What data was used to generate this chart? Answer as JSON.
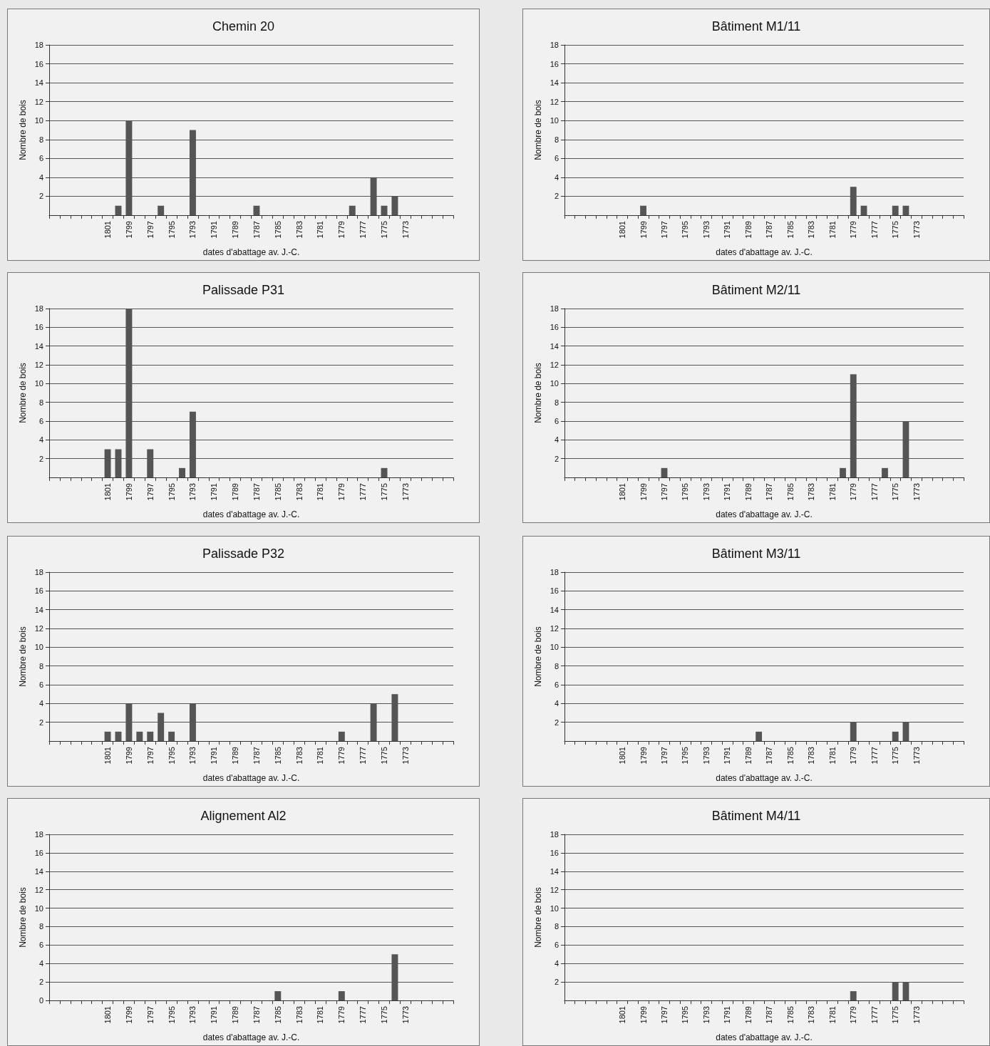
{
  "chart_data": [
    {
      "type": "bar",
      "title": "Chemin 20",
      "xlabel": "dates d'abattage av. J.-C.",
      "ylabel": "Nombre de bois",
      "categories": [
        null,
        null,
        null,
        null,
        null,
        "1801",
        null,
        "1799",
        null,
        "1797",
        null,
        "1795",
        null,
        "1793",
        null,
        "1791",
        null,
        "1789",
        null,
        "1787",
        null,
        "1785",
        null,
        "1783",
        null,
        "1781",
        null,
        "1779",
        null,
        "1777",
        null,
        "1775",
        null,
        "1773",
        null,
        null,
        null,
        null
      ],
      "values": [
        0,
        0,
        0,
        0,
        0,
        0,
        1,
        10,
        0,
        0,
        1,
        0,
        0,
        9,
        0,
        0,
        0,
        0,
        0,
        1,
        0,
        0,
        0,
        0,
        0,
        0,
        0,
        0,
        1,
        0,
        4,
        1,
        2,
        0,
        0,
        0,
        0,
        0
      ],
      "color": "#555555",
      "ylim": [
        0,
        18
      ],
      "yticks": [
        2,
        4,
        6,
        8,
        10,
        12,
        14,
        16,
        18
      ],
      "grid": true
    },
    {
      "type": "bar",
      "title": "Bâtiment M1/11",
      "xlabel": "dates d'abattage av. J.-C.",
      "ylabel": "Nombre de bois",
      "categories": [
        null,
        null,
        null,
        null,
        null,
        "1801",
        null,
        "1799",
        null,
        "1797",
        null,
        "1795",
        null,
        "1793",
        null,
        "1791",
        null,
        "1789",
        null,
        "1787",
        null,
        "1785",
        null,
        "1783",
        null,
        "1781",
        null,
        "1779",
        null,
        "1777",
        null,
        "1775",
        null,
        "1773",
        null,
        null,
        null,
        null
      ],
      "values": [
        0,
        0,
        0,
        0,
        0,
        0,
        0,
        1,
        0,
        0,
        0,
        0,
        0,
        0,
        0,
        0,
        0,
        0,
        0,
        0,
        0,
        0,
        0,
        0,
        0,
        0,
        0,
        3,
        1,
        0,
        0,
        1,
        1,
        0,
        0,
        0,
        0,
        0
      ],
      "color": "#555555",
      "ylim": [
        0,
        18
      ],
      "yticks": [
        2,
        4,
        6,
        8,
        10,
        12,
        14,
        16,
        18
      ],
      "grid": true
    },
    {
      "type": "bar",
      "title": "Palissade P31",
      "xlabel": "dates d'abattage av. J.-C.",
      "ylabel": "Nombre de bois",
      "categories": [
        null,
        null,
        null,
        null,
        null,
        "1801",
        null,
        "1799",
        null,
        "1797",
        null,
        "1795",
        null,
        "1793",
        null,
        "1791",
        null,
        "1789",
        null,
        "1787",
        null,
        "1785",
        null,
        "1783",
        null,
        "1781",
        null,
        "1779",
        null,
        "1777",
        null,
        "1775",
        null,
        "1773",
        null,
        null,
        null,
        null
      ],
      "values": [
        0,
        0,
        0,
        0,
        0,
        3,
        3,
        18,
        0,
        3,
        0,
        0,
        1,
        7,
        0,
        0,
        0,
        0,
        0,
        0,
        0,
        0,
        0,
        0,
        0,
        0,
        0,
        0,
        0,
        0,
        0,
        1,
        0,
        0,
        0,
        0,
        0,
        0
      ],
      "color": "#555555",
      "ylim": [
        0,
        18
      ],
      "yticks": [
        2,
        4,
        6,
        8,
        10,
        12,
        14,
        16,
        18
      ],
      "grid": true
    },
    {
      "type": "bar",
      "title": "Bâtiment M2/11",
      "xlabel": "dates d'abattage av. J.-C.",
      "ylabel": "Nombre de bois",
      "categories": [
        null,
        null,
        null,
        null,
        null,
        "1801",
        null,
        "1799",
        null,
        "1797",
        null,
        "1795",
        null,
        "1793",
        null,
        "1791",
        null,
        "1789",
        null,
        "1787",
        null,
        "1785",
        null,
        "1783",
        null,
        "1781",
        null,
        "1779",
        null,
        "1777",
        null,
        "1775",
        null,
        "1773",
        null,
        null,
        null,
        null
      ],
      "values": [
        0,
        0,
        0,
        0,
        0,
        0,
        0,
        0,
        0,
        1,
        0,
        0,
        0,
        0,
        0,
        0,
        0,
        0,
        0,
        0,
        0,
        0,
        0,
        0,
        0,
        0,
        1,
        11,
        0,
        0,
        1,
        0,
        6,
        0,
        0,
        0,
        0,
        0
      ],
      "color": "#555555",
      "ylim": [
        0,
        18
      ],
      "yticks": [
        2,
        4,
        6,
        8,
        10,
        12,
        14,
        16,
        18
      ],
      "grid": true
    },
    {
      "type": "bar",
      "title": "Palissade P32",
      "xlabel": "dates d'abattage av. J.-C.",
      "ylabel": "Nombre de bois",
      "categories": [
        null,
        null,
        null,
        null,
        null,
        "1801",
        null,
        "1799",
        null,
        "1797",
        null,
        "1795",
        null,
        "1793",
        null,
        "1791",
        null,
        "1789",
        null,
        "1787",
        null,
        "1785",
        null,
        "1783",
        null,
        "1781",
        null,
        "1779",
        null,
        "1777",
        null,
        "1775",
        null,
        "1773",
        null,
        null,
        null,
        null
      ],
      "values": [
        0,
        0,
        0,
        0,
        0,
        1,
        1,
        4,
        1,
        1,
        3,
        1,
        0,
        4,
        0,
        0,
        0,
        0,
        0,
        0,
        0,
        0,
        0,
        0,
        0,
        0,
        0,
        1,
        0,
        0,
        4,
        0,
        5,
        0,
        0,
        0,
        0,
        0
      ],
      "color": "#555555",
      "ylim": [
        0,
        18
      ],
      "yticks": [
        2,
        4,
        6,
        8,
        10,
        12,
        14,
        16,
        18
      ],
      "grid": true
    },
    {
      "type": "bar",
      "title": "Bâtiment M3/11",
      "xlabel": "dates d'abattage av. J.-C.",
      "ylabel": "Nombre de bois",
      "categories": [
        null,
        null,
        null,
        null,
        null,
        "1801",
        null,
        "1799",
        null,
        "1797",
        null,
        "1795",
        null,
        "1793",
        null,
        "1791",
        null,
        "1789",
        null,
        "1787",
        null,
        "1785",
        null,
        "1783",
        null,
        "1781",
        null,
        "1779",
        null,
        "1777",
        null,
        "1775",
        null,
        "1773",
        null,
        null,
        null,
        null
      ],
      "values": [
        0,
        0,
        0,
        0,
        0,
        0,
        0,
        0,
        0,
        0,
        0,
        0,
        0,
        0,
        0,
        0,
        0,
        0,
        1,
        0,
        0,
        0,
        0,
        0,
        0,
        0,
        0,
        2,
        0,
        0,
        0,
        1,
        2,
        0,
        0,
        0,
        0,
        0
      ],
      "color": "#555555",
      "ylim": [
        0,
        18
      ],
      "yticks": [
        2,
        4,
        6,
        8,
        10,
        12,
        14,
        16,
        18
      ],
      "grid": true
    },
    {
      "type": "bar",
      "title": "Alignement Al2",
      "xlabel": "dates d'abattage av. J.-C.",
      "ylabel": "Nombre de bois",
      "categories": [
        null,
        null,
        null,
        null,
        null,
        "1801",
        null,
        "1799",
        null,
        "1797",
        null,
        "1795",
        null,
        "1793",
        null,
        "1791",
        null,
        "1789",
        null,
        "1787",
        null,
        "1785",
        null,
        "1783",
        null,
        "1781",
        null,
        "1779",
        null,
        "1777",
        null,
        "1775",
        null,
        "1773",
        null,
        null,
        null,
        null
      ],
      "values": [
        0,
        0,
        0,
        0,
        0,
        0,
        0,
        0,
        0,
        0,
        0,
        0,
        0,
        0,
        0,
        0,
        0,
        0,
        0,
        0,
        0,
        1,
        0,
        0,
        0,
        0,
        0,
        1,
        0,
        0,
        0,
        0,
        5,
        0,
        0,
        0,
        0,
        0
      ],
      "color": "#555555",
      "ylim": [
        0,
        18
      ],
      "yticks": [
        0,
        2,
        4,
        6,
        8,
        10,
        12,
        14,
        16,
        18
      ],
      "grid": true
    },
    {
      "type": "bar",
      "title": "Bâtiment M4/11",
      "xlabel": "dates d'abattage av. J.-C.",
      "ylabel": "Nombre de bois",
      "categories": [
        null,
        null,
        null,
        null,
        null,
        "1801",
        null,
        "1799",
        null,
        "1797",
        null,
        "1795",
        null,
        "1793",
        null,
        "1791",
        null,
        "1789",
        null,
        "1787",
        null,
        "1785",
        null,
        "1783",
        null,
        "1781",
        null,
        "1779",
        null,
        "1777",
        null,
        "1775",
        null,
        "1773",
        null,
        null,
        null,
        null
      ],
      "values": [
        0,
        0,
        0,
        0,
        0,
        0,
        0,
        0,
        0,
        0,
        0,
        0,
        0,
        0,
        0,
        0,
        0,
        0,
        0,
        0,
        0,
        0,
        0,
        0,
        0,
        0,
        0,
        1,
        0,
        0,
        0,
        2,
        2,
        0,
        0,
        0,
        0,
        0
      ],
      "color": "#555555",
      "ylim": [
        0,
        18
      ],
      "yticks": [
        2,
        4,
        6,
        8,
        10,
        12,
        14,
        16,
        18
      ],
      "grid": true
    }
  ]
}
